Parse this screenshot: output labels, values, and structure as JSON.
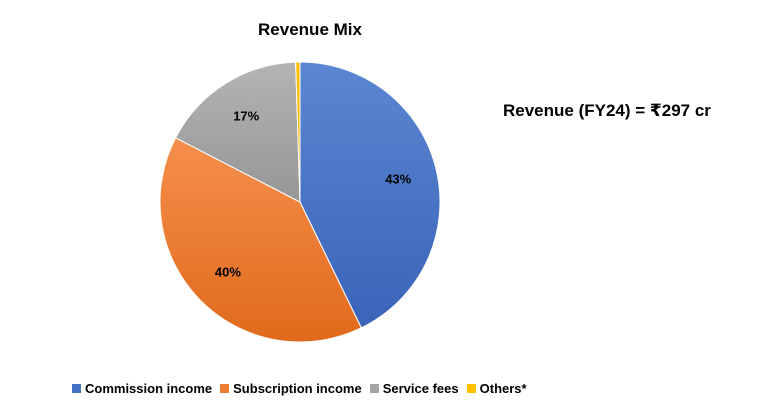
{
  "chart_data": {
    "type": "pie",
    "title": "Revenue Mix",
    "annotation": "Revenue (FY24) = ₹297 cr",
    "slices": [
      {
        "name": "Commission income",
        "value": 43,
        "label": "43%",
        "color": "#4472C4"
      },
      {
        "name": "Subscription income",
        "value": 40,
        "label": "40%",
        "color": "#ED7D31"
      },
      {
        "name": "Service fees",
        "value": 17,
        "label": "17%",
        "color": "#A5A5A5"
      },
      {
        "name": "Others*",
        "value": 0.5,
        "label": "",
        "color": "#FFC000"
      }
    ],
    "legend_position": "bottom"
  }
}
